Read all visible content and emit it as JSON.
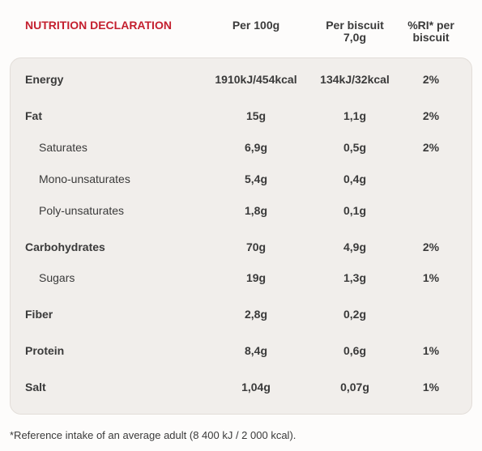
{
  "header": {
    "title": "NUTRITION DECLARATION",
    "columns": [
      "Per 100g",
      "Per biscuit 7,0g",
      "%RI* per biscuit"
    ]
  },
  "table": {
    "rows": [
      {
        "label": "Energy",
        "cells": [
          "1910kJ/454kcal",
          "134kJ/32kcal",
          "2%"
        ],
        "sub": false
      },
      {
        "label": "Fat",
        "cells": [
          "15g",
          "1,1g",
          "2%"
        ],
        "sub": false
      },
      {
        "label": "Saturates",
        "cells": [
          "6,9g",
          "0,5g",
          "2%"
        ],
        "sub": true
      },
      {
        "label": "Mono-unsaturates",
        "cells": [
          "5,4g",
          "0,4g",
          null
        ],
        "sub": true
      },
      {
        "label": "Poly-unsaturates",
        "cells": [
          "1,8g",
          "0,1g",
          null
        ],
        "sub": true
      },
      {
        "label": "Carbohydrates",
        "cells": [
          "70g",
          "4,9g",
          "2%"
        ],
        "sub": false
      },
      {
        "label": "Sugars",
        "cells": [
          "19g",
          "1,3g",
          "1%"
        ],
        "sub": true
      },
      {
        "label": "Fiber",
        "cells": [
          "2,8g",
          "0,2g",
          null
        ],
        "sub": false
      },
      {
        "label": "Protein",
        "cells": [
          "8,4g",
          "0,6g",
          "1%"
        ],
        "sub": false
      },
      {
        "label": "Salt",
        "cells": [
          "1,04g",
          "0,07g",
          "1%"
        ],
        "sub": false
      }
    ]
  },
  "footnote": "*Reference intake of an average adult (8 400 kJ / 2 000 kcal)."
}
